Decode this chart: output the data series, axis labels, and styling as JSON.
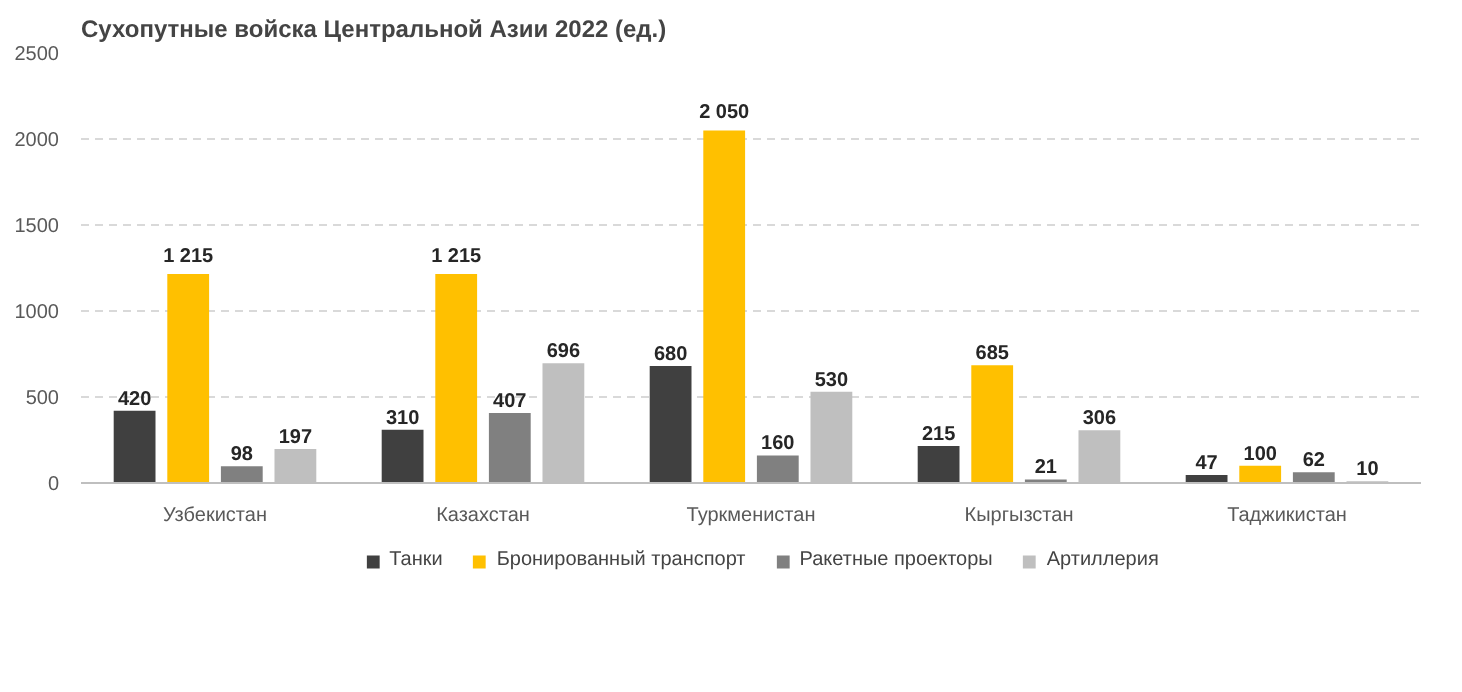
{
  "chart_data": {
    "type": "bar",
    "title": "Сухопутные войска Центральной Азии 2022 (ед.)",
    "categories": [
      "Узбекистан",
      "Казахстан",
      "Туркменистан",
      "Кыргызстан",
      "Таджикистан"
    ],
    "series": [
      {
        "name": "Танки",
        "color": "#404040",
        "values": [
          420,
          310,
          680,
          215,
          47
        ]
      },
      {
        "name": "Бронированный транспорт",
        "color": "#ffc000",
        "values": [
          1215,
          1215,
          2050,
          685,
          100
        ]
      },
      {
        "name": "Ракетные проекторы",
        "color": "#808080",
        "values": [
          98,
          407,
          160,
          21,
          62
        ]
      },
      {
        "name": "Артиллерия",
        "color": "#bfbfbf",
        "values": [
          197,
          696,
          530,
          306,
          10
        ]
      }
    ],
    "ylim": [
      0,
      2500
    ],
    "yticks": [
      0,
      500,
      1000,
      1500,
      2000,
      2500
    ],
    "grid": "y",
    "legend": "bottom",
    "data_labels": true
  }
}
